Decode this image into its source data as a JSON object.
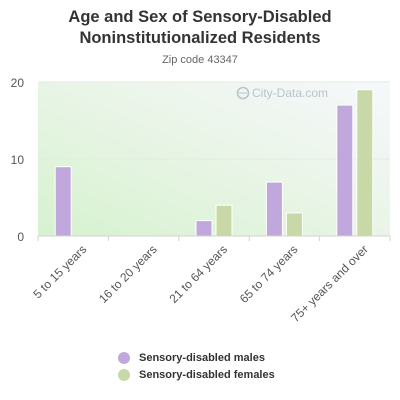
{
  "chart_data": {
    "type": "bar",
    "title": "Age and Sex of Sensory-Disabled Noninstitutionalized Residents",
    "subtitle": "Zip code 43347",
    "categories": [
      "5 to 15 years",
      "16 to 20 years",
      "21 to 64 years",
      "65 to 74 years",
      "75+ years and over"
    ],
    "series": [
      {
        "name": "Sensory-disabled males",
        "color": "#c0a8dc",
        "values": [
          9,
          0,
          2,
          7,
          17
        ]
      },
      {
        "name": "Sensory-disabled females",
        "color": "#c8d8a6",
        "values": [
          0,
          0,
          4,
          3,
          19
        ]
      }
    ],
    "ylim": [
      0,
      20
    ],
    "yticks": [
      0,
      10,
      20
    ],
    "grid": true,
    "legend_position": "bottom"
  },
  "watermark": "City-Data.com"
}
